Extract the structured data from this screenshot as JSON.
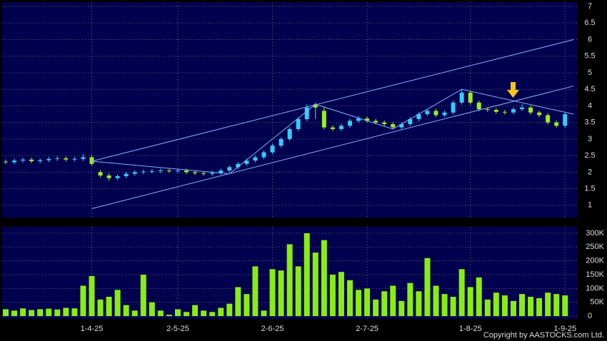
{
  "copyright": "Copyright by AASTOCKS.com Ltd.",
  "chart_data": [
    {
      "type": "candlestick",
      "up_color": "#33ccff",
      "down_color": "#99ee22",
      "grid": true,
      "open": [
        2.32,
        2.3,
        2.35,
        2.38,
        2.33,
        2.36,
        2.4,
        2.42,
        2.38,
        2.4,
        2.45,
        2.0,
        1.9,
        1.82,
        1.88,
        1.95,
        2.0,
        2.02,
        2.03,
        2.05,
        2.04,
        2.05,
        2.0,
        1.97,
        1.95,
        1.98,
        2.05,
        2.15,
        2.25,
        2.35,
        2.45,
        2.6,
        2.8,
        3.0,
        3.3,
        3.6,
        4.05,
        3.85,
        3.35,
        3.3,
        3.4,
        3.55,
        3.62,
        3.55,
        3.5,
        3.45,
        3.35,
        3.45,
        3.6,
        3.75,
        3.85,
        3.72,
        3.8,
        4.1,
        4.4,
        4.1,
        3.9,
        3.88,
        3.82,
        3.8,
        3.9,
        3.95,
        3.8,
        3.72,
        3.5,
        3.4
      ],
      "high": [
        2.38,
        2.41,
        2.44,
        2.44,
        2.42,
        2.46,
        2.48,
        2.48,
        2.46,
        2.55,
        2.51,
        2.06,
        1.96,
        1.94,
        2.01,
        2.06,
        2.08,
        2.09,
        2.11,
        2.11,
        2.11,
        2.11,
        2.06,
        2.03,
        2.04,
        2.11,
        2.21,
        2.31,
        2.41,
        2.51,
        2.66,
        2.86,
        3.06,
        3.36,
        3.66,
        4.05,
        4.1,
        3.95,
        3.41,
        3.46,
        3.61,
        3.7,
        3.68,
        3.61,
        3.56,
        3.51,
        3.51,
        3.66,
        3.81,
        3.91,
        3.91,
        3.86,
        4.16,
        4.5,
        4.46,
        4.16,
        3.96,
        3.94,
        3.88,
        3.96,
        4.05,
        4.01,
        3.86,
        3.78,
        3.56,
        3.81
      ],
      "low": [
        2.24,
        2.24,
        2.29,
        2.27,
        2.27,
        2.3,
        2.34,
        2.32,
        2.32,
        2.34,
        2.19,
        1.84,
        1.74,
        1.76,
        1.82,
        1.89,
        1.94,
        1.96,
        1.97,
        1.98,
        1.98,
        1.94,
        1.91,
        1.89,
        1.89,
        1.92,
        1.99,
        2.09,
        2.19,
        2.29,
        2.39,
        2.54,
        2.74,
        2.94,
        3.24,
        3.54,
        3.6,
        3.29,
        3.24,
        3.24,
        3.34,
        3.49,
        3.49,
        3.44,
        3.39,
        3.29,
        3.29,
        3.39,
        3.54,
        3.69,
        3.66,
        3.66,
        3.74,
        4.04,
        4.04,
        3.84,
        3.82,
        3.76,
        3.74,
        3.74,
        3.84,
        3.74,
        3.66,
        3.44,
        3.34,
        3.34
      ],
      "close": [
        2.3,
        2.35,
        2.38,
        2.33,
        2.36,
        2.4,
        2.42,
        2.38,
        2.4,
        2.45,
        2.25,
        1.9,
        1.82,
        1.88,
        1.95,
        2.0,
        2.02,
        2.03,
        2.05,
        2.04,
        2.05,
        2.0,
        1.97,
        1.95,
        1.98,
        2.05,
        2.15,
        2.25,
        2.35,
        2.45,
        2.6,
        2.8,
        3.0,
        3.3,
        3.6,
        3.95,
        3.95,
        3.35,
        3.3,
        3.4,
        3.55,
        3.62,
        3.55,
        3.5,
        3.45,
        3.35,
        3.45,
        3.6,
        3.75,
        3.85,
        3.72,
        3.8,
        4.1,
        4.4,
        4.1,
        3.9,
        3.88,
        3.82,
        3.8,
        3.9,
        3.95,
        3.8,
        3.72,
        3.5,
        3.4,
        3.75
      ],
      "ylim": [
        0.63,
        7.13
      ],
      "yticks": [
        1,
        1.5,
        2,
        2.5,
        3,
        3.5,
        4,
        4.5,
        5,
        5.5,
        6,
        6.5,
        7
      ],
      "trend_lines": [
        {
          "color": "#7fb2ff",
          "x": [
            10,
            66
          ],
          "y": [
            2.33,
            6.0
          ]
        },
        {
          "color": "#7fb2ff",
          "x": [
            10,
            66
          ],
          "y": [
            0.9,
            4.6
          ]
        },
        {
          "color": "#7fb2ff",
          "x": [
            10,
            26,
            36,
            45,
            53,
            66
          ],
          "y": [
            2.33,
            1.95,
            4.05,
            3.3,
            4.5,
            3.75
          ]
        }
      ]
    },
    {
      "type": "bar",
      "color": "#88ee11",
      "grid": true,
      "categories": [
        null,
        null,
        null,
        null,
        null,
        null,
        null,
        null,
        null,
        null,
        "1-4-25",
        null,
        null,
        null,
        null,
        null,
        null,
        null,
        null,
        null,
        "2-5-25",
        null,
        null,
        null,
        null,
        null,
        null,
        null,
        null,
        null,
        null,
        "2-6-25",
        null,
        null,
        null,
        null,
        null,
        null,
        null,
        null,
        null,
        null,
        "2-7-25",
        null,
        null,
        null,
        null,
        null,
        null,
        null,
        null,
        null,
        null,
        null,
        "1-8-25",
        null,
        null,
        null,
        null,
        null,
        null,
        null,
        null,
        null,
        null,
        "1-9-25"
      ],
      "values": [
        25000,
        20000,
        28000,
        22000,
        25000,
        27000,
        24000,
        30000,
        28000,
        110000,
        145000,
        60000,
        70000,
        95000,
        40000,
        20000,
        150000,
        50000,
        20000,
        5000,
        25000,
        15000,
        40000,
        20000,
        15000,
        30000,
        45000,
        105000,
        80000,
        180000,
        20000,
        170000,
        165000,
        260000,
        180000,
        300000,
        230000,
        275000,
        150000,
        160000,
        130000,
        95000,
        100000,
        60000,
        90000,
        110000,
        55000,
        120000,
        90000,
        210000,
        110000,
        80000,
        70000,
        170000,
        105000,
        140000,
        60000,
        85000,
        75000,
        55000,
        80000,
        70000,
        65000,
        85000,
        80000,
        75000
      ],
      "ylim": [
        -10000,
        323000
      ],
      "yticks": [
        0,
        {
          "value": 100000,
          "label": "100K"
        },
        {
          "value": 150000,
          "label": "150K"
        },
        {
          "value": 200000,
          "label": "200K"
        },
        {
          "value": 250000,
          "label": "250K"
        },
        {
          "value": 300000,
          "label": "300K"
        },
        {
          "value": 50000,
          "label": "50K"
        }
      ]
    }
  ]
}
